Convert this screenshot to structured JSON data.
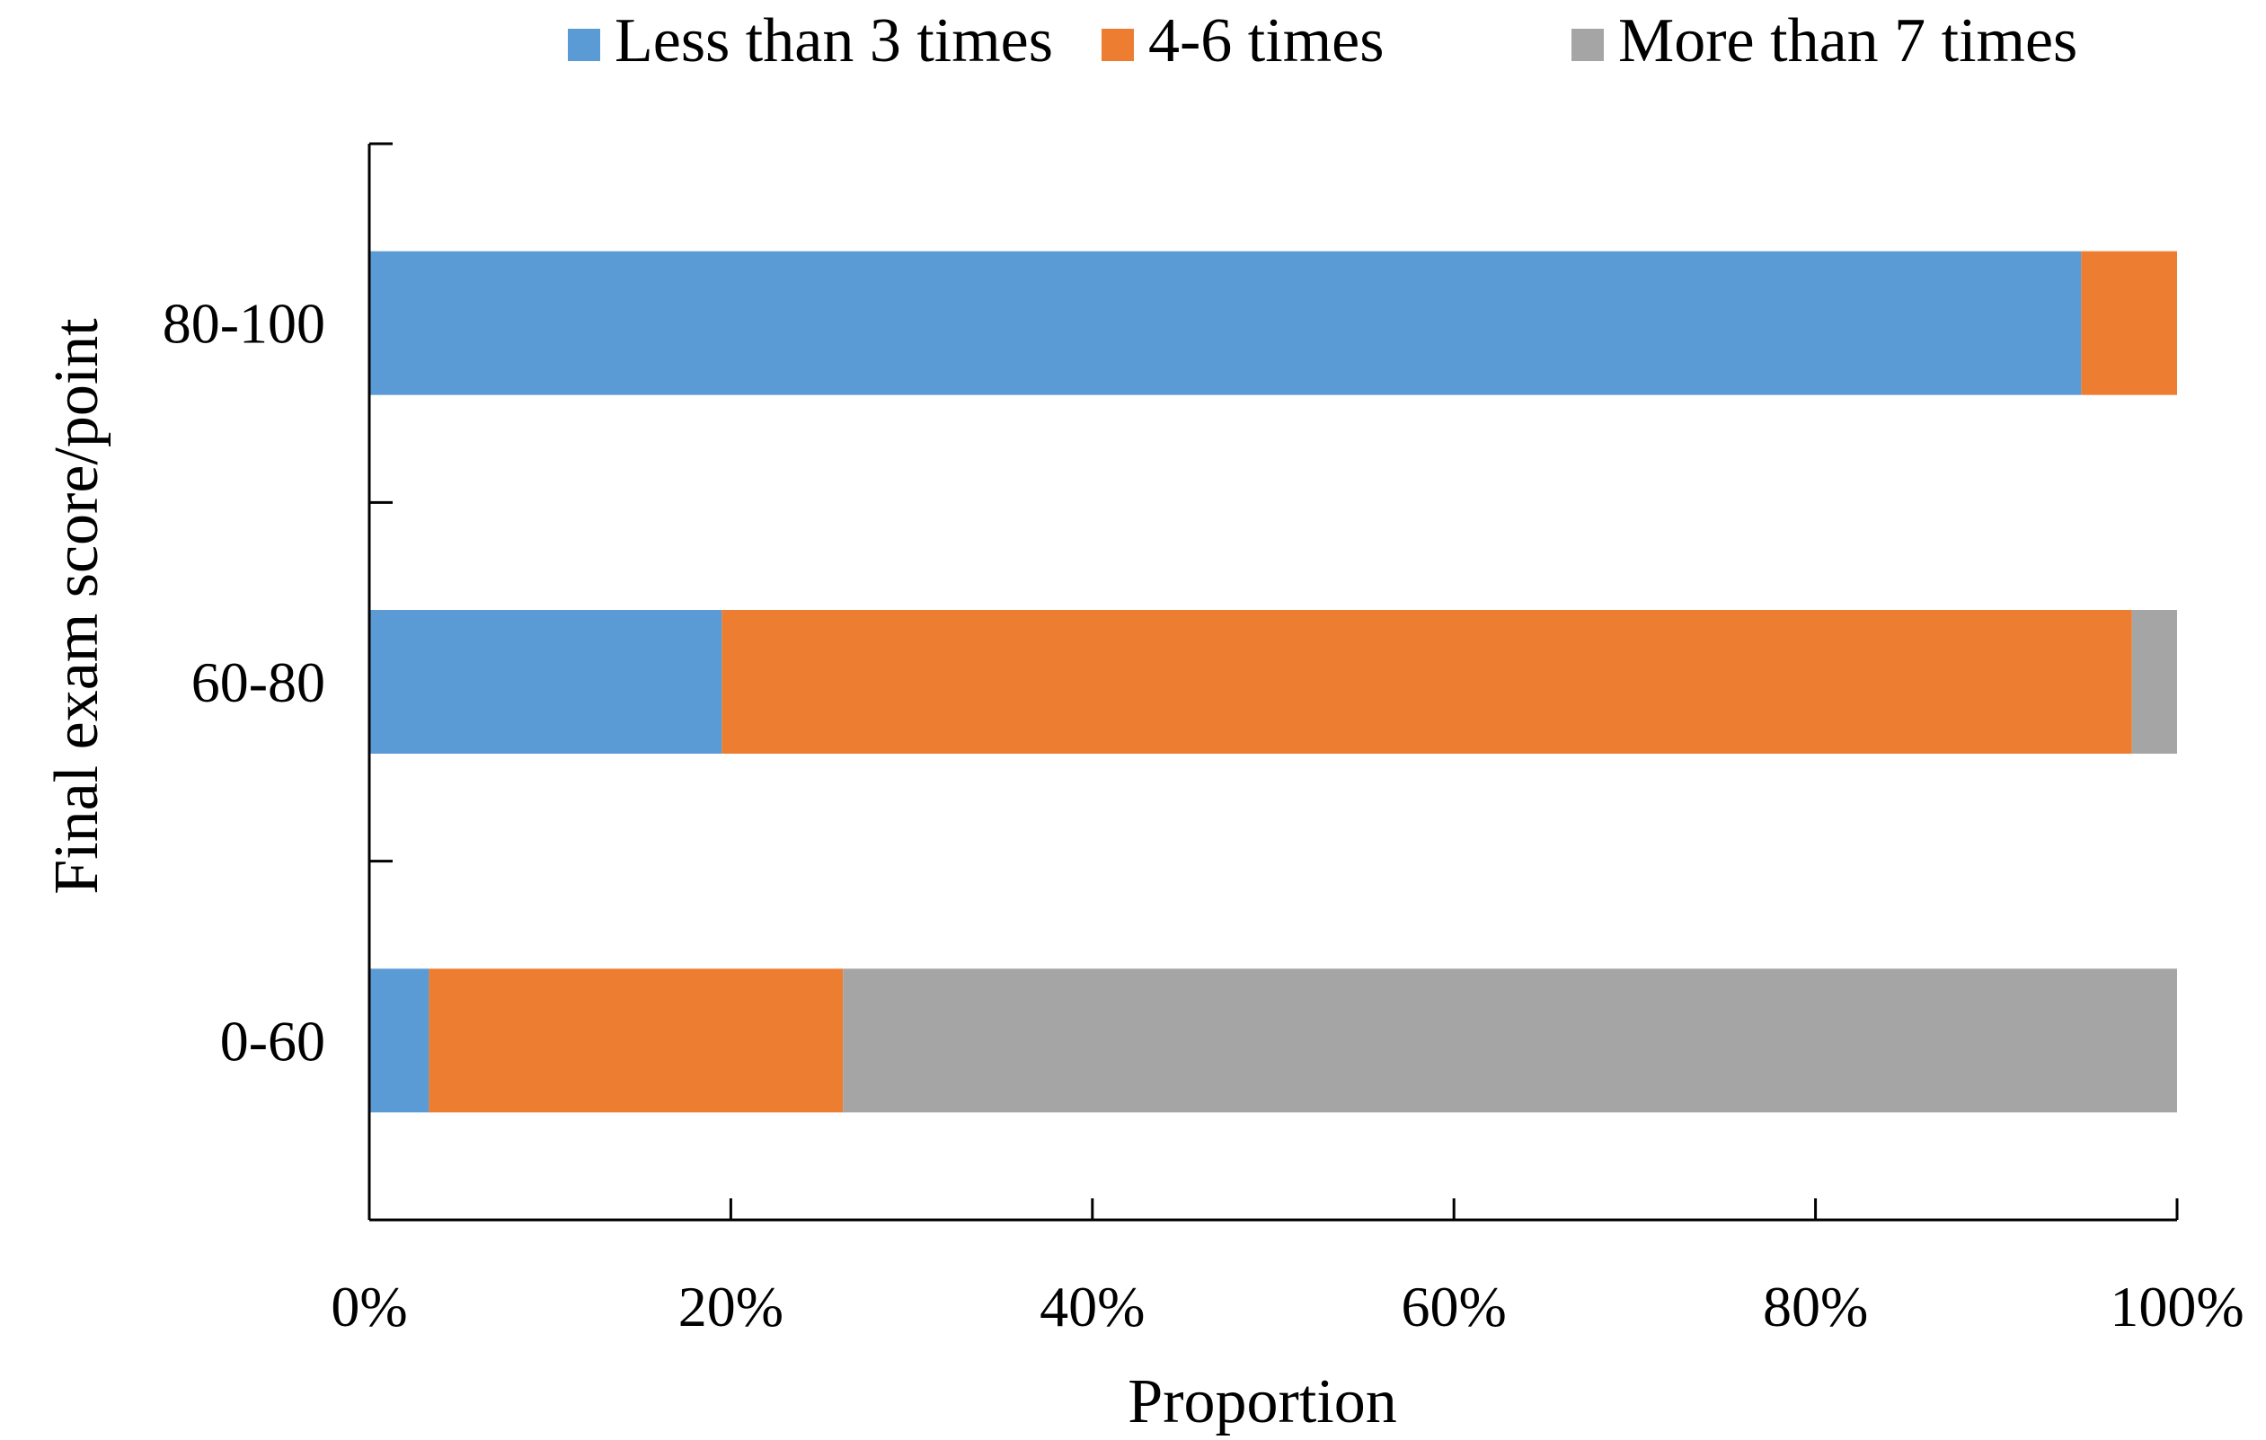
{
  "chart_data": {
    "type": "bar",
    "orientation": "horizontal",
    "stacked": true,
    "title": "",
    "xlabel": "Proportion",
    "ylabel": "Final exam score/point",
    "categories": [
      "80-100",
      "60-80",
      "0-60"
    ],
    "series": [
      {
        "name": "Less than 3 times",
        "color": "#5B9BD5",
        "values": [
          94.7,
          19.5,
          3.3
        ]
      },
      {
        "name": "4-6 times",
        "color": "#ED7D31",
        "values": [
          5.3,
          78.0,
          22.9
        ]
      },
      {
        "name": "More than 7 times",
        "color": "#A5A5A5",
        "values": [
          0.0,
          2.5,
          73.8
        ]
      }
    ],
    "xlim": [
      0,
      100
    ],
    "xticks": [
      "0%",
      "20%",
      "40%",
      "60%",
      "80%",
      "100%"
    ],
    "grid": false,
    "legend": "top"
  }
}
